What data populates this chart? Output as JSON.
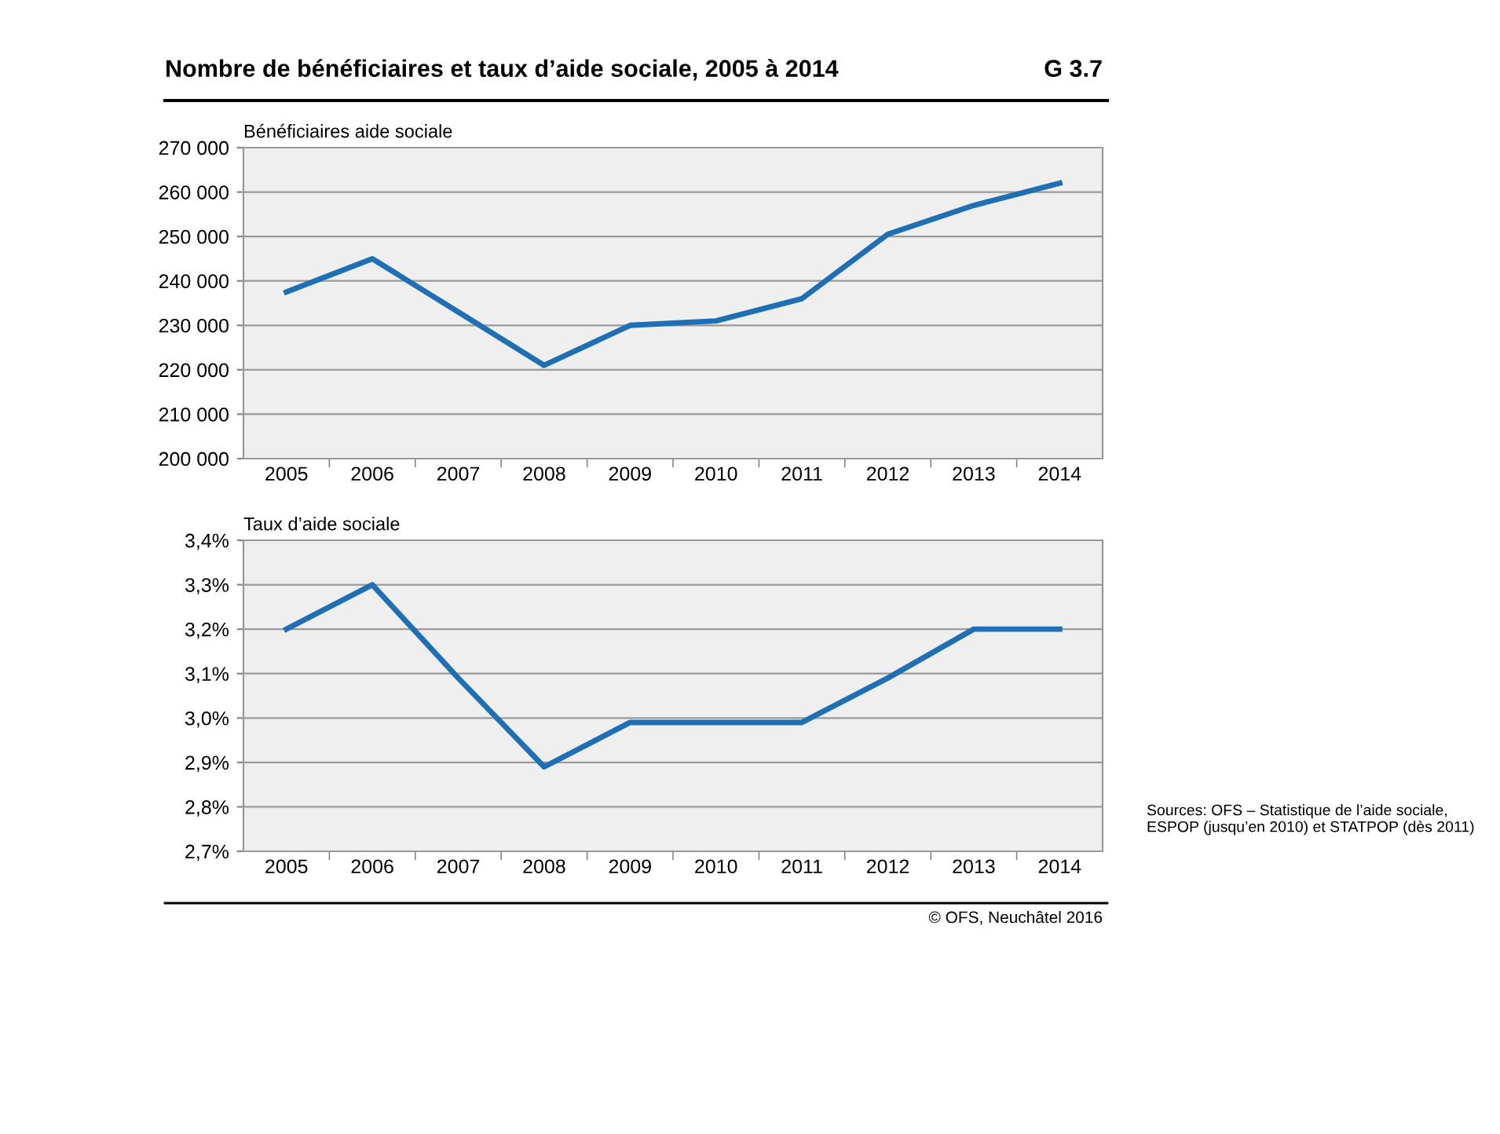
{
  "chart_data": [
    {
      "type": "line",
      "title": "Nombre de bénéficiaires et taux d’aide sociale, 2005 à 2014",
      "ylabel": "Bénéficiaires aide sociale",
      "annotations": [
        "G 3.7"
      ],
      "categories": [
        "2005",
        "2006",
        "2007",
        "2008",
        "2009",
        "2010",
        "2011",
        "2012",
        "2013",
        "2014"
      ],
      "series": [
        {
          "color": "#1f6fb4",
          "values": [
            237500,
            245000,
            233000,
            221000,
            230000,
            231000,
            236000,
            250500,
            257000,
            262000
          ]
        }
      ],
      "ylim": [
        200000,
        270000
      ],
      "yticks": [
        {
          "value": 200000,
          "label": "200 000"
        },
        {
          "value": 210000,
          "label": "210 000"
        },
        {
          "value": 220000,
          "label": "220 000"
        },
        {
          "value": 230000,
          "label": "230 000"
        },
        {
          "value": 240000,
          "label": "240 000"
        },
        {
          "value": 250000,
          "label": "250 000"
        },
        {
          "value": 260000,
          "label": "260 000"
        },
        {
          "value": 270000,
          "label": "270 000"
        }
      ],
      "grid": "y",
      "legend": false
    },
    {
      "type": "line",
      "ylabel": "Taux d’aide sociale",
      "annotations": [
        "Sources: OFS – Statistique de l’aide sociale, ESPOP (jusqu’en 2010) et STATPOP (dès 2011)",
        "© OFS, Neuchâtel 2016"
      ],
      "categories": [
        "2005",
        "2006",
        "2007",
        "2008",
        "2009",
        "2010",
        "2011",
        "2012",
        "2013",
        "2014"
      ],
      "series": [
        {
          "color": "#1f6fb4",
          "values": [
            3.2,
            3.3,
            3.09,
            2.89,
            2.99,
            2.99,
            2.99,
            3.09,
            3.2,
            3.2
          ]
        }
      ],
      "ylim": [
        2.7,
        3.4
      ],
      "yticks": [
        {
          "value": 2.7,
          "label": "2,7%"
        },
        {
          "value": 2.8,
          "label": "2,8%"
        },
        {
          "value": 2.9,
          "label": "2,9%"
        },
        {
          "value": 3.0,
          "label": "3,0%"
        },
        {
          "value": 3.1,
          "label": "3,1%"
        },
        {
          "value": 3.2,
          "label": "3,2%"
        },
        {
          "value": 3.3,
          "label": "3,3%"
        },
        {
          "value": 3.4,
          "label": "3,4%"
        }
      ],
      "grid": "y",
      "legend": false
    }
  ]
}
